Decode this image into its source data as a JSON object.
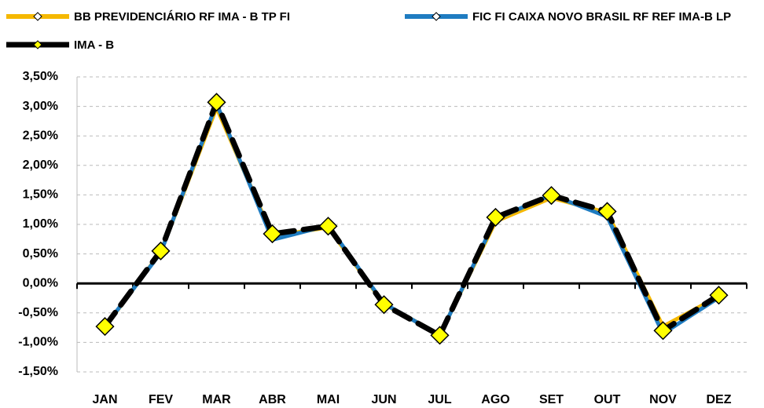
{
  "chart_data": {
    "type": "line",
    "categories": [
      "JAN",
      "FEV",
      "MAR",
      "ABR",
      "MAI",
      "JUN",
      "JUL",
      "AGO",
      "SET",
      "OUT",
      "NOV",
      "DEZ"
    ],
    "series": [
      {
        "name": "BB PREVIDENCIÁRIO RF IMA - B TP FI",
        "color": "#f5b800",
        "values": [
          -0.74,
          0.53,
          2.98,
          0.8,
          0.95,
          -0.35,
          -0.87,
          1.05,
          1.45,
          1.2,
          -0.73,
          -0.22
        ]
      },
      {
        "name": "FIC FI CAIXA NOVO BRASIL RF REF IMA-B LP",
        "color": "#1f7cc1",
        "values": [
          -0.73,
          0.52,
          3.05,
          0.74,
          0.98,
          -0.34,
          -0.88,
          1.09,
          1.5,
          1.13,
          -0.85,
          -0.24
        ]
      },
      {
        "name": "IMA - B",
        "color": "#000000",
        "marker_color": "#ffff00",
        "values": [
          -0.73,
          0.55,
          3.07,
          0.84,
          0.97,
          -0.36,
          -0.88,
          1.12,
          1.49,
          1.22,
          -0.8,
          -0.2
        ]
      }
    ],
    "ylim": [
      -1.5,
      3.5
    ],
    "yticks": [
      {
        "value": -1.5,
        "label": "-1,50%"
      },
      {
        "value": -1.0,
        "label": "-1,00%"
      },
      {
        "value": -0.5,
        "label": "-0,50%"
      },
      {
        "value": 0,
        "label": "0,00%"
      },
      {
        "value": 0.5,
        "label": "0,50%"
      },
      {
        "value": 1.0,
        "label": "1,00%"
      },
      {
        "value": 1.5,
        "label": "1,50%"
      },
      {
        "value": 2.0,
        "label": "2,00%"
      },
      {
        "value": 2.5,
        "label": "2,50%"
      },
      {
        "value": 3.0,
        "label": "3,00%"
      },
      {
        "value": 3.5,
        "label": "3,50%"
      }
    ],
    "grid": true
  }
}
